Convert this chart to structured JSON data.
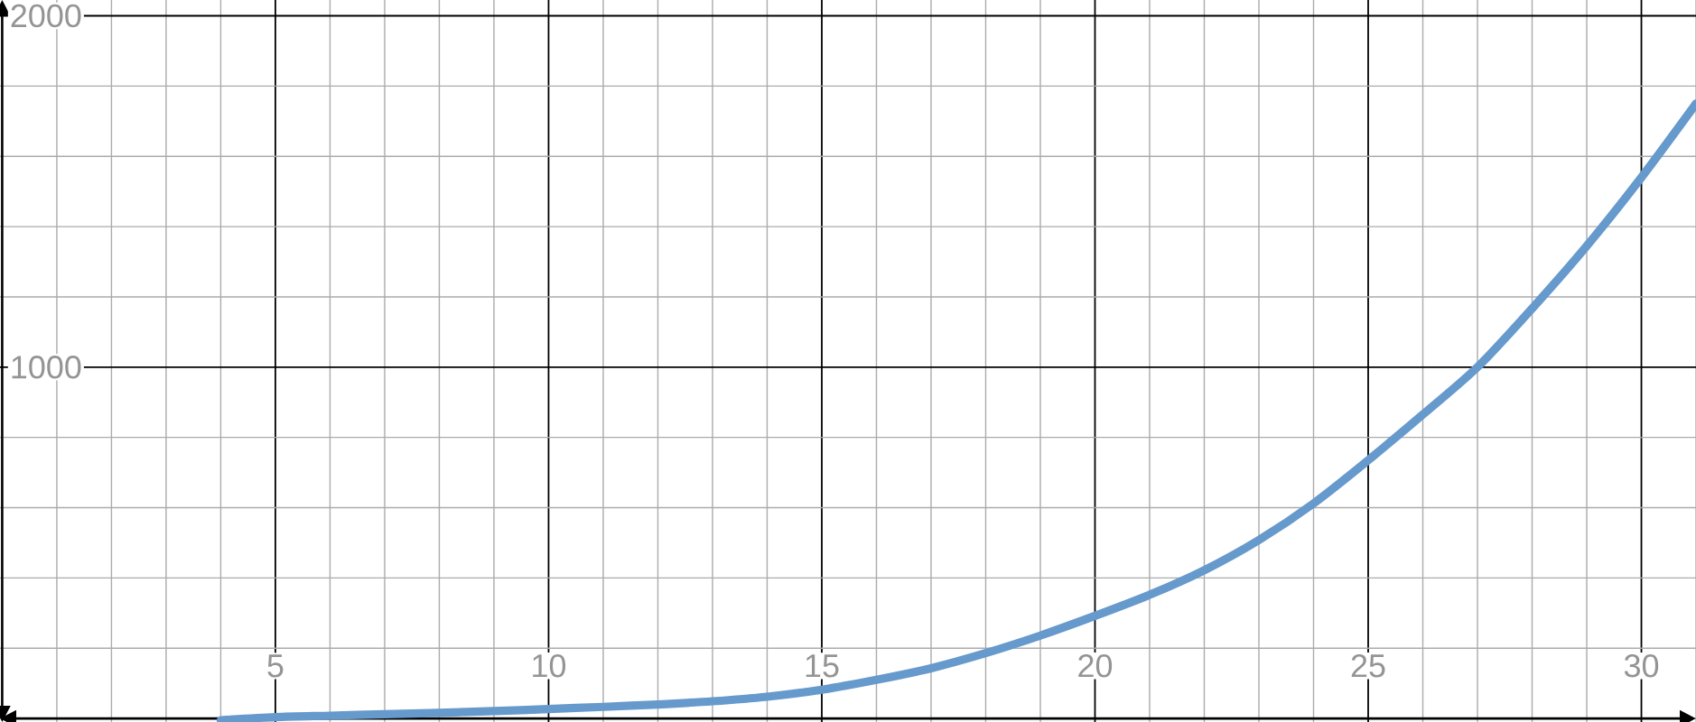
{
  "chart_data": {
    "type": "line",
    "x": [
      4,
      5,
      6,
      7,
      8,
      9,
      10,
      11,
      12,
      13,
      14,
      15,
      16,
      17,
      18,
      19,
      20,
      21,
      22,
      23,
      24,
      25,
      26,
      27,
      28,
      29,
      30,
      31
    ],
    "values": [
      -5,
      4,
      8,
      12,
      16,
      21,
      27,
      33,
      40,
      49,
      62,
      82,
      110,
      143,
      186,
      236,
      292,
      352,
      422,
      508,
      612,
      735,
      865,
      1000,
      1167,
      1345,
      1540,
      1750
    ],
    "color": "#6699cc",
    "xlim": [
      -0.04,
      31
    ],
    "ylim": [
      -10,
      2045
    ],
    "xticks": [
      5,
      10,
      15,
      20,
      25,
      30
    ],
    "yticks": [
      1000,
      2000
    ],
    "grid": true,
    "line_style": "solid"
  }
}
